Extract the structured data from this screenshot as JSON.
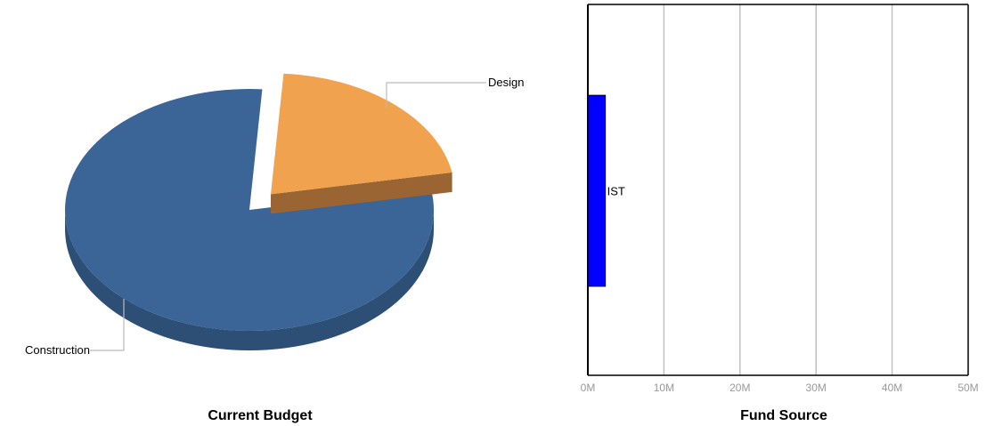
{
  "chart_data": [
    {
      "type": "pie",
      "title": "Current Budget",
      "slices": [
        {
          "label": "Design",
          "value": 21,
          "color": "#f0a24f",
          "side_color": "#9a6533",
          "exploded": true
        },
        {
          "label": "Construction",
          "value": 79,
          "color": "#3a6596",
          "side_color": "#2d4f76",
          "exploded": false
        }
      ],
      "three_d": true
    },
    {
      "type": "bar",
      "orientation": "horizontal",
      "title": "Fund Source",
      "categories": [
        "IST"
      ],
      "values": [
        2300000
      ],
      "bar_color": "#0000ff",
      "xlim": [
        0,
        50000000
      ],
      "xticks": [
        0,
        10000000,
        20000000,
        30000000,
        40000000,
        50000000
      ],
      "xtick_labels": [
        "0M",
        "10M",
        "20M",
        "30M",
        "40M",
        "50M"
      ],
      "grid": "vertical"
    }
  ]
}
